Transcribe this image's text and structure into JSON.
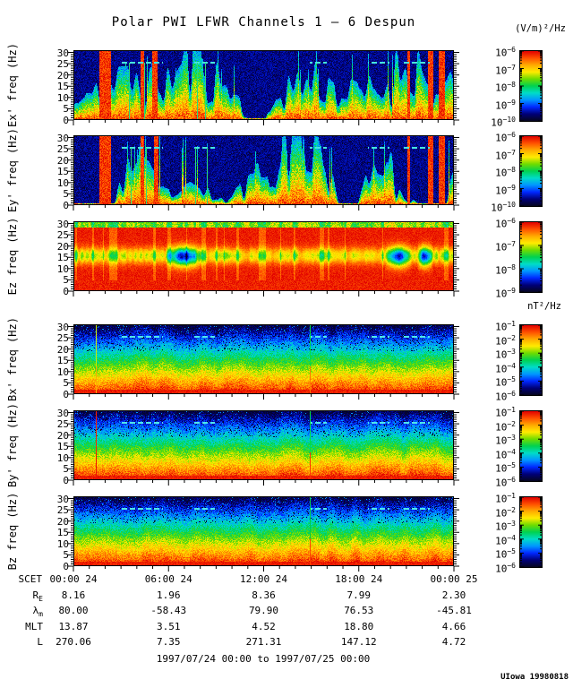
{
  "title": "Polar PWI LFWR Channels 1 — 6 Despun",
  "footer": "1997/07/24 00:00 to 1997/07/25 00:00",
  "credit": "UIowa 19980818",
  "chart_data": {
    "type": "heatmap",
    "title": "Polar PWI LFWR Channels 1 — 6 Despun",
    "x_axis": {
      "label": "SCET",
      "ticks": [
        "00:00 24",
        "06:00 24",
        "12:00 24",
        "18:00 24",
        "00:00 25"
      ],
      "hours_range": [
        0,
        24
      ],
      "minor_tick_hours": 1,
      "major_tick_hours": 6
    },
    "y_axis": {
      "range_hz": [
        0,
        31
      ],
      "ticks": [
        0,
        5,
        10,
        15,
        20,
        25,
        30
      ]
    },
    "units_e": "(V/m)²/Hz",
    "units_b": "nT²/Hz",
    "legend_position": "right",
    "colormap": [
      "#05051e",
      "#000078",
      "#0028ff",
      "#0096ff",
      "#00dcc8",
      "#00d250",
      "#6edc00",
      "#ffeb00",
      "#ffaa00",
      "#ff5000",
      "#e10000"
    ],
    "dash_line_hz": 25,
    "panels": [
      {
        "id": "ex",
        "ylabel": "Ex' freq (Hz)",
        "pattern": "e-burst",
        "seed": 11,
        "colorbar_exponents": [
          -6,
          -7,
          -8,
          -9,
          -10
        ],
        "dashes": [
          [
            0.125,
            0.235
          ],
          [
            0.31,
            0.37
          ],
          [
            0.62,
            0.665
          ],
          [
            0.775,
            0.83
          ],
          [
            0.865,
            0.935
          ]
        ],
        "t_lines": [
          0.145,
          0.186,
          0.325,
          0.345
        ],
        "red_columns": [
          [
            0.066,
            0.097
          ],
          [
            0.175,
            0.185
          ],
          [
            0.207,
            0.219
          ],
          [
            0.877,
            0.884
          ],
          [
            0.93,
            0.944
          ],
          [
            0.96,
            0.976
          ]
        ]
      },
      {
        "id": "ey",
        "ylabel": "Ey' freq (Hz)",
        "pattern": "e-burst",
        "seed": 23,
        "colorbar_exponents": [
          -6,
          -7,
          -8,
          -9,
          -10
        ],
        "dashes": [
          [
            0.125,
            0.235
          ],
          [
            0.31,
            0.37
          ],
          [
            0.62,
            0.665
          ],
          [
            0.775,
            0.83
          ],
          [
            0.865,
            0.935
          ]
        ],
        "t_lines": [
          0.15,
          0.19,
          0.32,
          0.35
        ],
        "red_columns": [
          [
            0.066,
            0.097
          ],
          [
            0.175,
            0.185
          ],
          [
            0.21,
            0.222
          ],
          [
            0.877,
            0.884
          ],
          [
            0.93,
            0.944
          ],
          [
            0.96,
            0.976
          ]
        ]
      },
      {
        "id": "ez",
        "ylabel": "Ez freq (Hz)",
        "pattern": "ez-red",
        "seed": 37,
        "colorbar_exponents": [
          -6,
          -7,
          -8,
          -9
        ],
        "blobs": [
          [
            0.24,
            0.34
          ],
          [
            0.815,
            0.89
          ],
          [
            0.9,
            0.945
          ]
        ],
        "dashes": [],
        "t_lines": [],
        "red_columns": []
      },
      {
        "id": "bx",
        "ylabel": "Bx' freq (Hz)",
        "pattern": "b-gradient",
        "seed": 51,
        "colorbar_exponents": [
          -1,
          -2,
          -3,
          -4,
          -5,
          -6
        ],
        "dashes": [
          [
            0.125,
            0.235
          ],
          [
            0.31,
            0.37
          ],
          [
            0.62,
            0.665
          ],
          [
            0.775,
            0.83
          ],
          [
            0.865,
            0.935
          ]
        ],
        "events": [
          {
            "x": 0.058,
            "top": "#ccee00",
            "bottom": "#ffaa00"
          },
          {
            "x": 0.62,
            "top": "#00dd44",
            "bottom": "#ff7700"
          }
        ]
      },
      {
        "id": "by",
        "ylabel": "By' freq (Hz)",
        "pattern": "b-gradient",
        "seed": 67,
        "colorbar_exponents": [
          -1,
          -2,
          -3,
          -4,
          -5,
          -6
        ],
        "dashes": [
          [
            0.125,
            0.235
          ],
          [
            0.31,
            0.37
          ],
          [
            0.62,
            0.665
          ],
          [
            0.775,
            0.83
          ],
          [
            0.865,
            0.935
          ]
        ],
        "events": [
          {
            "x": 0.058,
            "top": "#ff2200",
            "bottom": "#ee1100"
          },
          {
            "x": 0.62,
            "top": "#00dd44",
            "bottom": "#ff3300"
          }
        ]
      },
      {
        "id": "bz",
        "ylabel": "Bz freq (Hz)",
        "pattern": "b-gradient",
        "seed": 83,
        "colorbar_exponents": [
          -1,
          -2,
          -3,
          -4,
          -5,
          -6
        ],
        "dashes": [
          [
            0.125,
            0.235
          ],
          [
            0.31,
            0.37
          ],
          [
            0.62,
            0.665
          ],
          [
            0.775,
            0.83
          ],
          [
            0.865,
            0.935
          ]
        ],
        "events": [
          {
            "x": 0.62,
            "top": "#00cc44",
            "bottom": "#ff4400"
          }
        ]
      }
    ]
  },
  "ephemeris": {
    "rows": [
      {
        "label": "R",
        "sub": "E",
        "values": [
          "8.16",
          "1.96",
          "8.36",
          "7.99",
          "2.30"
        ]
      },
      {
        "label": "λ",
        "sub": "m",
        "values": [
          "80.00",
          "-58.43",
          "79.90",
          "76.53",
          "-45.81"
        ]
      },
      {
        "label": "MLT",
        "sub": "",
        "values": [
          "13.87",
          "3.51",
          "4.52",
          "18.80",
          "4.66"
        ]
      },
      {
        "label": "L",
        "sub": "",
        "values": [
          "270.06",
          "7.35",
          "271.31",
          "147.12",
          "4.72"
        ]
      }
    ]
  }
}
